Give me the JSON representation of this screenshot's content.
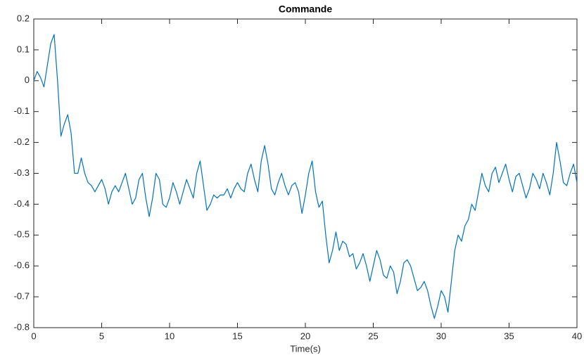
{
  "chart_data": {
    "type": "line",
    "title": "Commande",
    "x_label": "Time(s)",
    "x": [
      0,
      0.25,
      0.5,
      0.75,
      1,
      1.25,
      1.5,
      1.75,
      2,
      2.25,
      2.5,
      2.75,
      3,
      3.25,
      3.5,
      3.75,
      4,
      4.25,
      4.5,
      4.75,
      5,
      5.25,
      5.5,
      5.75,
      6,
      6.25,
      6.5,
      6.75,
      7,
      7.25,
      7.5,
      7.75,
      8,
      8.25,
      8.5,
      8.75,
      9,
      9.25,
      9.5,
      9.75,
      10,
      10.25,
      10.5,
      10.75,
      11,
      11.25,
      11.5,
      11.75,
      12,
      12.25,
      12.5,
      12.75,
      13,
      13.25,
      13.5,
      13.75,
      14,
      14.25,
      14.5,
      14.75,
      15,
      15.25,
      15.5,
      15.75,
      16,
      16.25,
      16.5,
      16.75,
      17,
      17.25,
      17.5,
      17.75,
      18,
      18.25,
      18.5,
      18.75,
      19,
      19.25,
      19.5,
      19.75,
      20,
      20.25,
      20.5,
      20.75,
      21,
      21.25,
      21.5,
      21.75,
      22,
      22.25,
      22.5,
      22.75,
      23,
      23.25,
      23.5,
      23.75,
      24,
      24.25,
      24.5,
      24.75,
      25,
      25.25,
      25.5,
      25.75,
      26,
      26.25,
      26.5,
      26.75,
      27,
      27.25,
      27.5,
      27.75,
      28,
      28.25,
      28.5,
      28.75,
      29,
      29.25,
      29.5,
      29.75,
      30,
      30.25,
      30.5,
      30.75,
      31,
      31.25,
      31.5,
      31.75,
      32,
      32.25,
      32.5,
      32.75,
      33,
      33.25,
      33.5,
      33.75,
      34,
      34.25,
      34.5,
      34.75,
      35,
      35.25,
      35.5,
      35.75,
      36,
      36.25,
      36.5,
      36.75,
      37,
      37.25,
      37.5,
      37.75,
      38,
      38.25,
      38.5,
      38.75,
      39,
      39.25,
      39.5,
      39.75,
      40
    ],
    "series": [
      {
        "color": "#0072bd",
        "values": [
          0,
          0.03,
          0.01,
          -0.02,
          0.05,
          0.12,
          0.15,
          0.0,
          -0.18,
          -0.14,
          -0.11,
          -0.17,
          -0.3,
          -0.3,
          -0.25,
          -0.3,
          -0.33,
          -0.34,
          -0.36,
          -0.34,
          -0.32,
          -0.35,
          -0.4,
          -0.36,
          -0.34,
          -0.36,
          -0.33,
          -0.3,
          -0.35,
          -0.4,
          -0.38,
          -0.32,
          -0.3,
          -0.38,
          -0.44,
          -0.38,
          -0.3,
          -0.32,
          -0.4,
          -0.41,
          -0.38,
          -0.33,
          -0.36,
          -0.4,
          -0.36,
          -0.32,
          -0.35,
          -0.38,
          -0.3,
          -0.26,
          -0.34,
          -0.42,
          -0.4,
          -0.37,
          -0.38,
          -0.37,
          -0.37,
          -0.35,
          -0.38,
          -0.35,
          -0.33,
          -0.35,
          -0.36,
          -0.3,
          -0.27,
          -0.32,
          -0.36,
          -0.26,
          -0.21,
          -0.27,
          -0.35,
          -0.37,
          -0.33,
          -0.3,
          -0.34,
          -0.37,
          -0.34,
          -0.33,
          -0.36,
          -0.43,
          -0.37,
          -0.3,
          -0.26,
          -0.36,
          -0.41,
          -0.39,
          -0.5,
          -0.59,
          -0.55,
          -0.49,
          -0.55,
          -0.52,
          -0.53,
          -0.57,
          -0.56,
          -0.61,
          -0.59,
          -0.56,
          -0.6,
          -0.65,
          -0.6,
          -0.55,
          -0.58,
          -0.63,
          -0.64,
          -0.6,
          -0.62,
          -0.69,
          -0.65,
          -0.59,
          -0.58,
          -0.6,
          -0.64,
          -0.68,
          -0.67,
          -0.65,
          -0.68,
          -0.73,
          -0.77,
          -0.73,
          -0.68,
          -0.7,
          -0.75,
          -0.65,
          -0.55,
          -0.5,
          -0.52,
          -0.47,
          -0.45,
          -0.4,
          -0.42,
          -0.36,
          -0.3,
          -0.34,
          -0.36,
          -0.3,
          -0.28,
          -0.33,
          -0.3,
          -0.27,
          -0.32,
          -0.36,
          -0.31,
          -0.3,
          -0.34,
          -0.38,
          -0.35,
          -0.3,
          -0.32,
          -0.35,
          -0.3,
          -0.33,
          -0.37,
          -0.3,
          -0.2,
          -0.26,
          -0.33,
          -0.34,
          -0.3,
          -0.27,
          -0.33
        ]
      }
    ],
    "xlim": [
      0,
      40
    ],
    "ylim": [
      -0.8,
      0.2
    ],
    "xticks": [
      0,
      5,
      10,
      15,
      20,
      25,
      30,
      35,
      40
    ],
    "yticks": [
      -0.8,
      -0.7,
      -0.6,
      -0.5,
      -0.4,
      -0.3,
      -0.2,
      -0.1,
      0,
      0.1,
      0.2
    ],
    "grid": false
  }
}
